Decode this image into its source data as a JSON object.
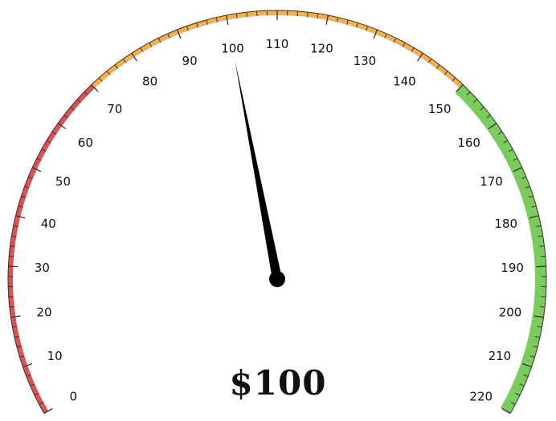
{
  "chart_data": {
    "type": "gauge",
    "min": 0,
    "max": 220,
    "value": 100,
    "major_step": 10,
    "minor_step": 2,
    "tick_labels": [
      "0",
      "10",
      "20",
      "30",
      "40",
      "50",
      "60",
      "70",
      "80",
      "90",
      "100",
      "110",
      "120",
      "130",
      "140",
      "150",
      "160",
      "170",
      "180",
      "190",
      "200",
      "210",
      "220"
    ],
    "bands": [
      {
        "from": 0,
        "to": 70,
        "color": "#e05252"
      },
      {
        "from": 70,
        "to": 150,
        "color": "#f2b04f"
      },
      {
        "from": 150,
        "to": 220,
        "color": "#7acc5c"
      }
    ],
    "readout": "$100"
  }
}
